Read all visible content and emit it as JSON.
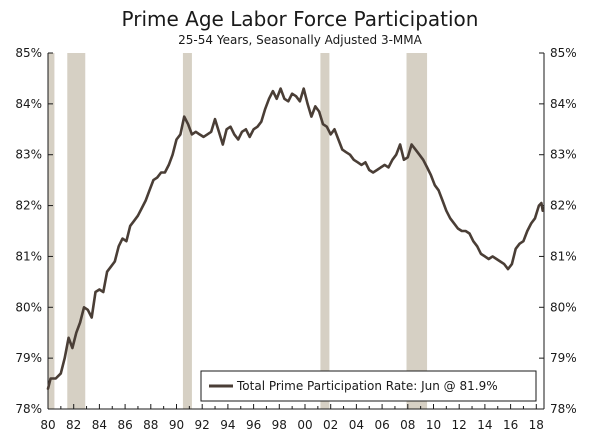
{
  "chart_data": {
    "type": "line",
    "title": "Prime Age Labor Force Participation",
    "subtitle": "25-54 Years, Seasonally Adjusted 3-MMA",
    "ylim": [
      78,
      85
    ],
    "xlim": [
      1980,
      2018.6
    ],
    "y_ticks": [
      "78%",
      "79%",
      "80%",
      "81%",
      "82%",
      "83%",
      "84%",
      "85%"
    ],
    "x_ticks": [
      "80",
      "82",
      "84",
      "86",
      "88",
      "90",
      "92",
      "94",
      "96",
      "98",
      "00",
      "02",
      "04",
      "06",
      "08",
      "10",
      "12",
      "14",
      "16",
      "18"
    ],
    "grid": false,
    "legend_position": "bottom-right",
    "recessions": [
      {
        "start": 1980.0,
        "end": 1980.5
      },
      {
        "start": 1981.5,
        "end": 1982.9
      },
      {
        "start": 1990.5,
        "end": 1991.2
      },
      {
        "start": 2001.2,
        "end": 2001.9
      },
      {
        "start": 2007.9,
        "end": 2009.5
      }
    ],
    "series": [
      {
        "name": "Total Prime Participation Rate: Jun @ 81.9%",
        "color": "#4a3e36",
        "points": [
          [
            1980.0,
            78.4
          ],
          [
            1980.2,
            78.6
          ],
          [
            1980.6,
            78.6
          ],
          [
            1981.0,
            78.7
          ],
          [
            1981.3,
            79.0
          ],
          [
            1981.6,
            79.4
          ],
          [
            1981.9,
            79.2
          ],
          [
            1982.2,
            79.5
          ],
          [
            1982.5,
            79.7
          ],
          [
            1982.8,
            80.0
          ],
          [
            1983.1,
            79.95
          ],
          [
            1983.4,
            79.8
          ],
          [
            1983.7,
            80.3
          ],
          [
            1984.0,
            80.35
          ],
          [
            1984.3,
            80.3
          ],
          [
            1984.6,
            80.7
          ],
          [
            1984.9,
            80.8
          ],
          [
            1985.2,
            80.9
          ],
          [
            1985.5,
            81.2
          ],
          [
            1985.8,
            81.35
          ],
          [
            1986.1,
            81.3
          ],
          [
            1986.4,
            81.6
          ],
          [
            1986.7,
            81.7
          ],
          [
            1987.0,
            81.8
          ],
          [
            1987.3,
            81.95
          ],
          [
            1987.6,
            82.1
          ],
          [
            1987.9,
            82.3
          ],
          [
            1988.2,
            82.5
          ],
          [
            1988.5,
            82.55
          ],
          [
            1988.8,
            82.65
          ],
          [
            1989.1,
            82.65
          ],
          [
            1989.4,
            82.8
          ],
          [
            1989.7,
            83.0
          ],
          [
            1990.0,
            83.3
          ],
          [
            1990.3,
            83.4
          ],
          [
            1990.6,
            83.75
          ],
          [
            1990.9,
            83.6
          ],
          [
            1991.2,
            83.4
          ],
          [
            1991.5,
            83.45
          ],
          [
            1991.8,
            83.4
          ],
          [
            1992.1,
            83.35
          ],
          [
            1992.4,
            83.4
          ],
          [
            1992.7,
            83.45
          ],
          [
            1993.0,
            83.7
          ],
          [
            1993.3,
            83.45
          ],
          [
            1993.6,
            83.2
          ],
          [
            1993.9,
            83.5
          ],
          [
            1994.2,
            83.55
          ],
          [
            1994.5,
            83.4
          ],
          [
            1994.8,
            83.3
          ],
          [
            1995.1,
            83.45
          ],
          [
            1995.4,
            83.5
          ],
          [
            1995.7,
            83.35
          ],
          [
            1996.0,
            83.5
          ],
          [
            1996.3,
            83.55
          ],
          [
            1996.6,
            83.65
          ],
          [
            1996.9,
            83.9
          ],
          [
            1997.2,
            84.1
          ],
          [
            1997.5,
            84.25
          ],
          [
            1997.8,
            84.1
          ],
          [
            1998.1,
            84.3
          ],
          [
            1998.4,
            84.1
          ],
          [
            1998.7,
            84.05
          ],
          [
            1999.0,
            84.2
          ],
          [
            1999.3,
            84.15
          ],
          [
            1999.6,
            84.05
          ],
          [
            1999.9,
            84.3
          ],
          [
            2000.2,
            84.0
          ],
          [
            2000.5,
            83.75
          ],
          [
            2000.8,
            83.95
          ],
          [
            2001.1,
            83.85
          ],
          [
            2001.4,
            83.6
          ],
          [
            2001.7,
            83.55
          ],
          [
            2002.0,
            83.4
          ],
          [
            2002.3,
            83.5
          ],
          [
            2002.6,
            83.3
          ],
          [
            2002.9,
            83.1
          ],
          [
            2003.2,
            83.05
          ],
          [
            2003.5,
            83.0
          ],
          [
            2003.8,
            82.9
          ],
          [
            2004.1,
            82.85
          ],
          [
            2004.4,
            82.8
          ],
          [
            2004.7,
            82.85
          ],
          [
            2005.0,
            82.7
          ],
          [
            2005.3,
            82.65
          ],
          [
            2005.6,
            82.7
          ],
          [
            2005.9,
            82.75
          ],
          [
            2006.2,
            82.8
          ],
          [
            2006.5,
            82.75
          ],
          [
            2006.8,
            82.9
          ],
          [
            2007.1,
            83.0
          ],
          [
            2007.4,
            83.2
          ],
          [
            2007.7,
            82.9
          ],
          [
            2008.0,
            82.95
          ],
          [
            2008.3,
            83.2
          ],
          [
            2008.6,
            83.1
          ],
          [
            2008.9,
            83.0
          ],
          [
            2009.2,
            82.9
          ],
          [
            2009.5,
            82.75
          ],
          [
            2009.8,
            82.6
          ],
          [
            2010.1,
            82.4
          ],
          [
            2010.4,
            82.3
          ],
          [
            2010.7,
            82.1
          ],
          [
            2011.0,
            81.9
          ],
          [
            2011.3,
            81.75
          ],
          [
            2011.6,
            81.65
          ],
          [
            2011.9,
            81.55
          ],
          [
            2012.2,
            81.5
          ],
          [
            2012.5,
            81.5
          ],
          [
            2012.8,
            81.45
          ],
          [
            2013.1,
            81.3
          ],
          [
            2013.4,
            81.2
          ],
          [
            2013.7,
            81.05
          ],
          [
            2014.0,
            81.0
          ],
          [
            2014.3,
            80.95
          ],
          [
            2014.6,
            81.0
          ],
          [
            2014.9,
            80.95
          ],
          [
            2015.2,
            80.9
          ],
          [
            2015.5,
            80.85
          ],
          [
            2015.8,
            80.75
          ],
          [
            2016.1,
            80.85
          ],
          [
            2016.4,
            81.15
          ],
          [
            2016.7,
            81.25
          ],
          [
            2017.0,
            81.3
          ],
          [
            2017.3,
            81.5
          ],
          [
            2017.6,
            81.65
          ],
          [
            2017.9,
            81.75
          ],
          [
            2018.2,
            82.0
          ],
          [
            2018.4,
            82.05
          ],
          [
            2018.5,
            81.9
          ]
        ]
      }
    ]
  },
  "colors": {
    "recession": "#d6d0c4",
    "axis": "#1a1a1a"
  }
}
